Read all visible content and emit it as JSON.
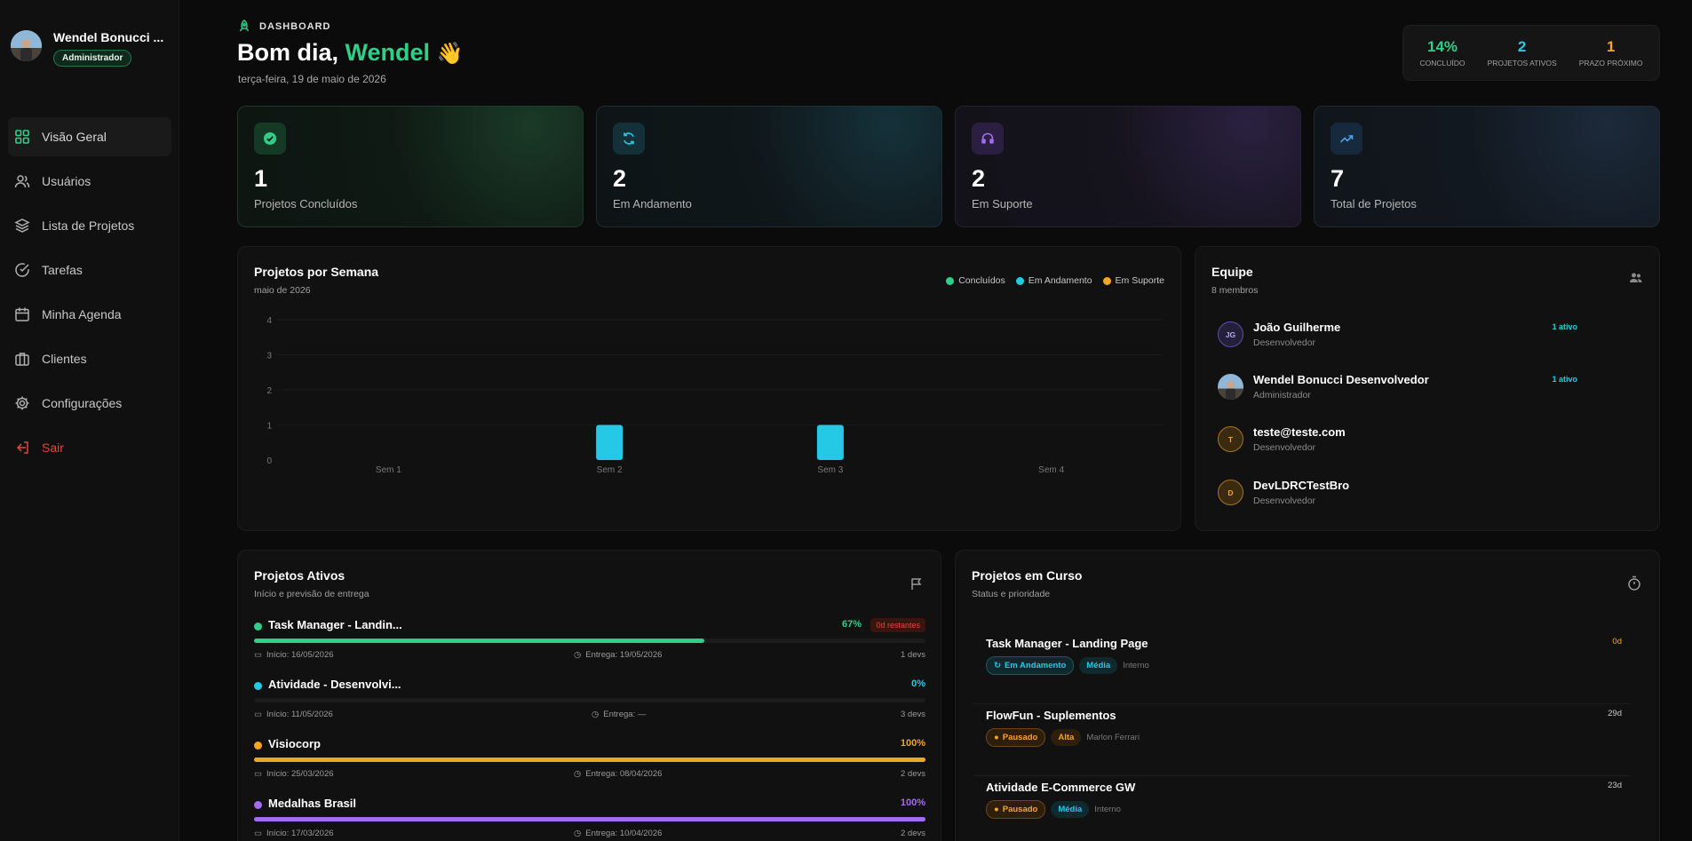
{
  "user": {
    "name": "Wendel Bonucci ...",
    "role": "Administrador"
  },
  "nav": [
    {
      "label": "Visão Geral",
      "icon": "grid-icon",
      "active": true
    },
    {
      "label": "Usuários",
      "icon": "users-icon"
    },
    {
      "label": "Lista de Projetos",
      "icon": "layers-icon"
    },
    {
      "label": "Tarefas",
      "icon": "check-circle-icon"
    },
    {
      "label": "Minha Agenda",
      "icon": "calendar-icon"
    },
    {
      "label": "Clientes",
      "icon": "briefcase-icon"
    },
    {
      "label": "Configurações",
      "icon": "gear-icon"
    },
    {
      "label": "Sair",
      "icon": "logout-icon",
      "color": "#e0463b"
    }
  ],
  "header": {
    "tag": "DASHBOARD",
    "greeting_prefix": "Bom dia,",
    "greeting_name": "Wendel",
    "greeting_emoji": "👋",
    "date": "terça-feira, 19 de maio de 2026"
  },
  "summary": [
    {
      "value": "14%",
      "label": "CONCLUÍDO",
      "color": "#2fcf8a"
    },
    {
      "value": "2",
      "label": "PROJETOS ATIVOS",
      "color": "#25c9e6"
    },
    {
      "value": "1",
      "label": "PRAZO PRÓXIMO",
      "color": "#f5a524"
    }
  ],
  "stats": [
    {
      "value": "1",
      "label": "Projetos Concluídos",
      "icon": "check-badge-icon",
      "color": "#2fcf8a"
    },
    {
      "value": "2",
      "label": "Em Andamento",
      "icon": "refresh-icon",
      "color": "#25c9e6"
    },
    {
      "value": "2",
      "label": "Em Suporte",
      "icon": "headset-icon",
      "color": "#a36cf0"
    },
    {
      "value": "7",
      "label": "Total de Projetos",
      "icon": "trending-up-icon",
      "color": "#4aa3e6"
    }
  ],
  "chart_panel": {
    "title": "Projetos por Semana",
    "subtitle": "maio de 2026"
  },
  "chart_data": {
    "type": "bar",
    "categories": [
      "Sem 1",
      "Sem 2",
      "Sem 3",
      "Sem 4"
    ],
    "series": [
      {
        "name": "Concluídos",
        "values": [
          0,
          0,
          0,
          0
        ],
        "color": "#2fcf8a"
      },
      {
        "name": "Em Andamento",
        "values": [
          0,
          1,
          1,
          0
        ],
        "color": "#25c9e6"
      },
      {
        "name": "Em Suporte",
        "values": [
          0,
          0,
          0,
          0
        ],
        "color": "#f5a524"
      }
    ],
    "yticks": [
      "0",
      "1",
      "2",
      "3",
      "4"
    ],
    "ylim": [
      0,
      4
    ],
    "legend": "top-right",
    "grid": true
  },
  "team": {
    "title": "Equipe",
    "subtitle": "8 membros",
    "members": [
      {
        "initials": "JG",
        "name": "João Guilherme",
        "role": "Desenvolvedor",
        "status": "1 ativo",
        "color": "#7c6fd6"
      },
      {
        "initials": "",
        "name": "Wendel Bonucci Desenvolvedor",
        "role": "Administrador",
        "status": "1 ativo",
        "color": "#6fa8d8"
      },
      {
        "initials": "T",
        "name": "teste@teste.com",
        "role": "Desenvolvedor",
        "status": "",
        "color": "#f5a524"
      },
      {
        "initials": "D",
        "name": "DevLDRCTestBro",
        "role": "Desenvolvedor",
        "status": "",
        "color": "#f5a524"
      }
    ]
  },
  "active_projects": {
    "title": "Projetos Ativos",
    "subtitle": "Início e previsão de entrega",
    "items": [
      {
        "name": "Task Manager - Landin...",
        "pct": "67%",
        "progress": 0.67,
        "remaining": "0d restantes",
        "start": "Início: 16/05/2026",
        "delivery": "Entrega: 19/05/2026",
        "devs": "1 devs",
        "color": "#2fcf8a"
      },
      {
        "name": "Atividade - Desenvolvi...",
        "pct": "0%",
        "progress": 0,
        "remaining": "",
        "start": "Início: 11/05/2026",
        "delivery": "Entrega: —",
        "devs": "3 devs",
        "color": "#25c9e6"
      },
      {
        "name": "Visiocorp",
        "pct": "100%",
        "progress": 1,
        "remaining": "",
        "start": "Início: 25/03/2026",
        "delivery": "Entrega: 08/04/2026",
        "devs": "2 devs",
        "color": "#f5a524"
      },
      {
        "name": "Medalhas Brasil",
        "pct": "100%",
        "progress": 1,
        "remaining": "",
        "start": "Início: 17/03/2026",
        "delivery": "Entrega: 10/04/2026",
        "devs": "2 devs",
        "color": "#a36cf0"
      }
    ]
  },
  "course_projects": {
    "title": "Projetos em Curso",
    "subtitle": "Status e prioridade",
    "items": [
      {
        "name": "Task Manager - Landing Page",
        "days": "0d",
        "days_color": "#f5a524",
        "status": "Em Andamento",
        "status_color": "#25c9e6",
        "priority": "Média",
        "priority_color": "#25c9e6",
        "client": "Interno"
      },
      {
        "name": "FlowFun - Suplementos",
        "days": "29d",
        "days_color": "#c8c8c8",
        "status": "Pausado",
        "status_color": "#f5a524",
        "priority": "Alta",
        "priority_color": "#f5a524",
        "client": "Marlon Ferrari"
      },
      {
        "name": "Atividade E-Commerce GW",
        "days": "23d",
        "days_color": "#c8c8c8",
        "status": "Pausado",
        "status_color": "#f5a524",
        "priority": "Média",
        "priority_color": "#25c9e6",
        "client": "Interno"
      }
    ]
  }
}
